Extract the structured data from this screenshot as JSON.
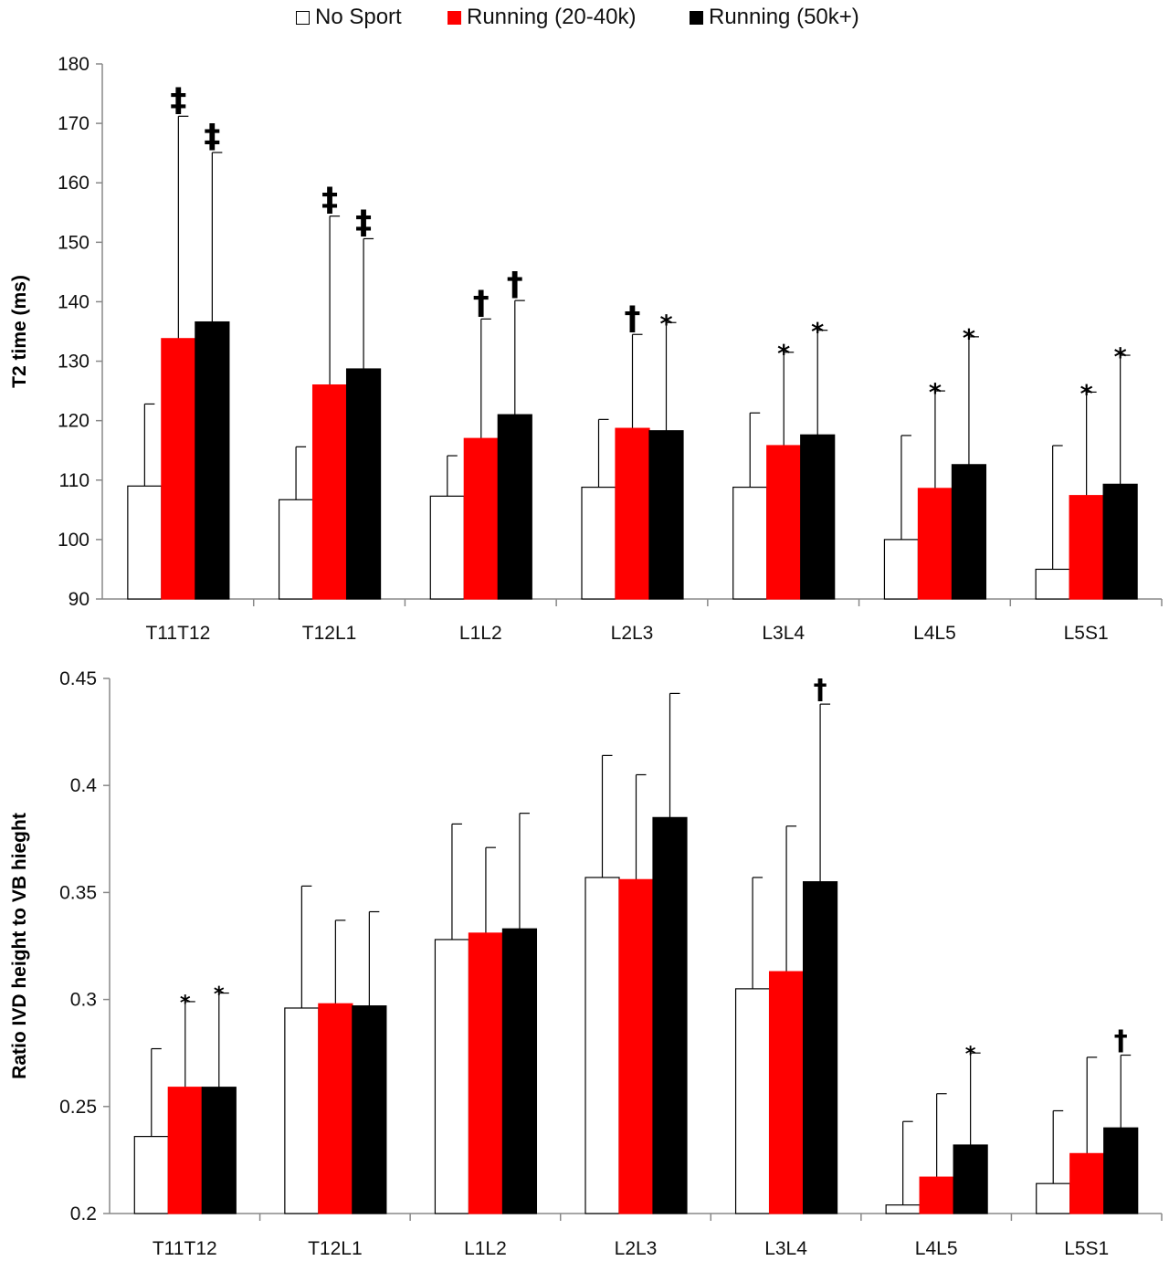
{
  "colors": {
    "no_sport": "#ffffff",
    "run_mid": "#ff0000",
    "run_high": "#000000"
  },
  "legend": [
    {
      "label": "No Sport",
      "color": "#ffffff"
    },
    {
      "label": "Running (20-40k)",
      "color": "#ff0000"
    },
    {
      "label": "Running (50k+)",
      "color": "#000000"
    }
  ],
  "chart_data": [
    {
      "type": "bar",
      "title": "",
      "xlabel": "",
      "ylabel": "T2 time (ms)",
      "ylim": [
        90,
        180
      ],
      "yticks": [
        90,
        100,
        110,
        120,
        130,
        140,
        150,
        160,
        170,
        180
      ],
      "categories": [
        "T11T12",
        "T12L1",
        "L1L2",
        "L2L3",
        "L3L4",
        "L4L5",
        "L5S1"
      ],
      "series": [
        {
          "name": "No Sport",
          "values": [
            109,
            106.7,
            107.3,
            108.8,
            108.8,
            100,
            95
          ],
          "error_top": [
            122.8,
            115.6,
            114.1,
            120.2,
            121.3,
            117.5,
            115.8
          ],
          "markers": [
            "",
            "",
            "",
            "",
            "",
            "",
            ""
          ]
        },
        {
          "name": "Running (20-40k)",
          "values": [
            133.8,
            126,
            117,
            118.7,
            115.8,
            108.6,
            107.4
          ],
          "error_top": [
            171.2,
            154.4,
            137.1,
            134.5,
            131.5,
            125,
            124.8
          ],
          "markers": [
            "‡",
            "‡",
            "†",
            "†",
            "*",
            "*",
            "*"
          ]
        },
        {
          "name": "Running (50k+)",
          "values": [
            136.6,
            128.7,
            121,
            118.3,
            117.6,
            112.6,
            109.3
          ],
          "error_top": [
            165.1,
            150.6,
            140.2,
            136.5,
            135.2,
            134.1,
            131
          ],
          "markers": [
            "‡",
            "‡",
            "†",
            "*",
            "*",
            "*",
            "*"
          ]
        }
      ]
    },
    {
      "type": "bar",
      "title": "",
      "xlabel": "",
      "ylabel": "Ratio IVD height to VB hieght",
      "ylim": [
        0.2,
        0.45
      ],
      "yticks": [
        "0.2",
        "0.25",
        "0.3",
        "0.35",
        "0.4",
        "0.45"
      ],
      "categories": [
        "T11T12",
        "T12L1",
        "L1L2",
        "L2L3",
        "L3L4",
        "L4L5",
        "L5S1"
      ],
      "series": [
        {
          "name": "No Sport",
          "values": [
            0.236,
            0.296,
            0.328,
            0.357,
            0.305,
            0.204,
            0.214
          ],
          "error_top": [
            0.277,
            0.353,
            0.382,
            0.414,
            0.357,
            0.243,
            0.248
          ],
          "markers": [
            "",
            "",
            "",
            "",
            "",
            "",
            ""
          ]
        },
        {
          "name": "Running (20-40k)",
          "values": [
            0.259,
            0.298,
            0.331,
            0.356,
            0.313,
            0.217,
            0.228
          ],
          "error_top": [
            0.299,
            0.337,
            0.371,
            0.405,
            0.381,
            0.256,
            0.273
          ],
          "markers": [
            "*",
            "",
            "",
            "",
            "",
            "",
            ""
          ]
        },
        {
          "name": "Running (50k+)",
          "values": [
            0.259,
            0.297,
            0.333,
            0.385,
            0.355,
            0.232,
            0.24
          ],
          "error_top": [
            0.303,
            0.341,
            0.387,
            0.443,
            0.438,
            0.275,
            0.274
          ],
          "markers": [
            "*",
            "",
            "",
            "",
            "†",
            "*",
            "†"
          ]
        }
      ]
    }
  ]
}
